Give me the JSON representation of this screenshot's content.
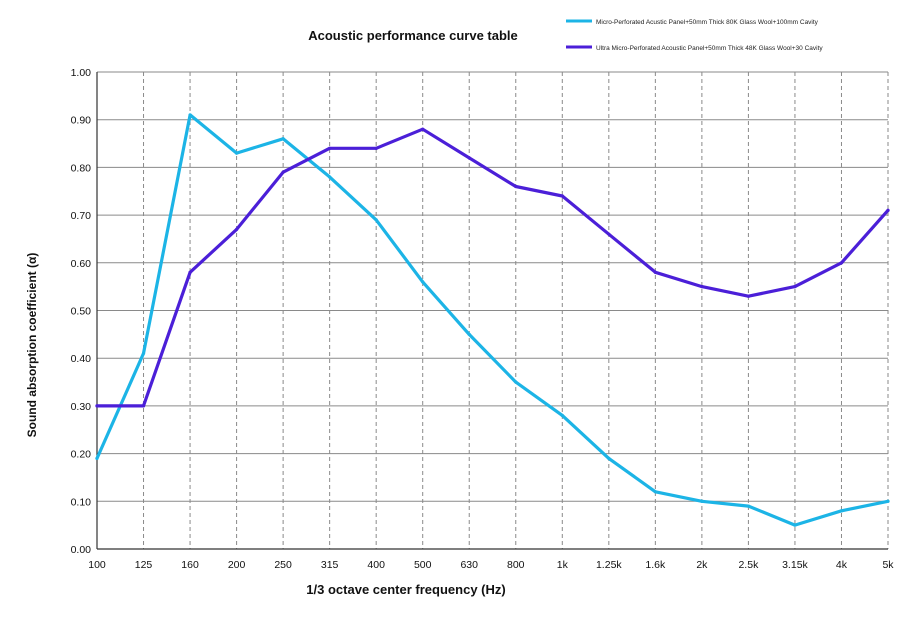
{
  "chart_data": {
    "type": "line",
    "title": "Acoustic performance curve table",
    "xlabel": "1/3 octave center frequency (Hz)",
    "ylabel": "Sound absorption coefficient (α)",
    "categories": [
      "100",
      "125",
      "160",
      "200",
      "250",
      "315",
      "400",
      "500",
      "630",
      "800",
      "1k",
      "1.25k",
      "1.6k",
      "2k",
      "2.5k",
      "3.15k",
      "4k",
      "5k"
    ],
    "ylim": [
      0,
      1
    ],
    "yticks": [
      "0.00",
      "0.10",
      "0.20",
      "0.30",
      "0.40",
      "0.50",
      "0.60",
      "0.70",
      "0.80",
      "0.90",
      "1.00"
    ],
    "grid": true,
    "legend_position": "top-right",
    "series": [
      {
        "name": "Micro-Perforated Acustic Panel+50mm Thick 80K Glass Wool+100mm Cavity",
        "color": "#1cb4e6",
        "values": [
          0.19,
          0.41,
          0.91,
          0.83,
          0.86,
          0.78,
          0.69,
          0.56,
          0.45,
          0.35,
          0.28,
          0.19,
          0.12,
          0.1,
          0.09,
          0.05,
          0.08,
          0.1
        ]
      },
      {
        "name": "Ultra Micro-Perforated Acoustic Panel+50mm Thick 48K Glass Wool+30 Cavity",
        "color": "#4b1fd8",
        "values": [
          0.3,
          0.3,
          0.58,
          0.67,
          0.79,
          0.84,
          0.84,
          0.88,
          0.82,
          0.76,
          0.74,
          0.66,
          0.58,
          0.55,
          0.53,
          0.55,
          0.6,
          0.71
        ]
      }
    ]
  }
}
